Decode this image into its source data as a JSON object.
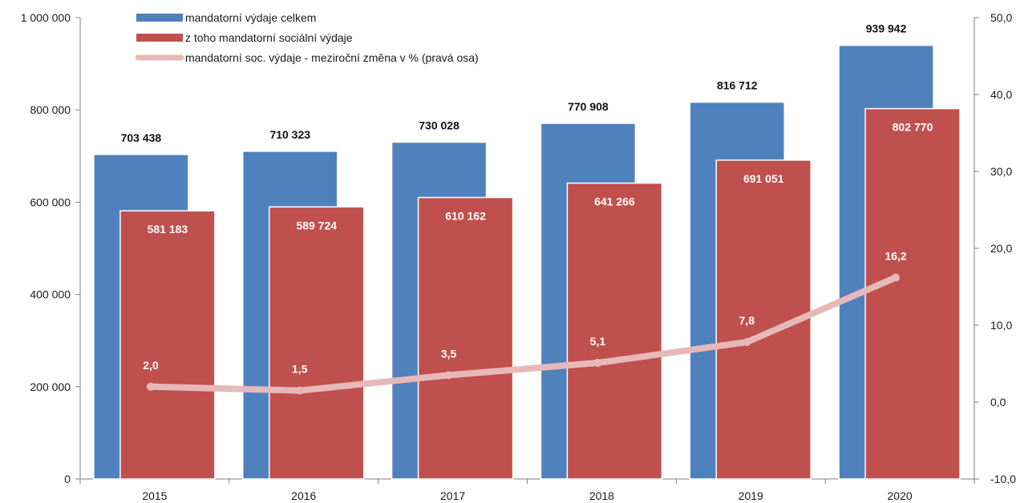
{
  "chart_data": {
    "type": "bar",
    "categories": [
      "2015",
      "2016",
      "2017",
      "2018",
      "2019",
      "2020"
    ],
    "series": [
      {
        "name": "mandatorní výdaje celkem",
        "type": "bar",
        "axis": "left",
        "color": "#4f81bd",
        "values": [
          703438,
          710323,
          730028,
          770908,
          816712,
          939942
        ],
        "labels": [
          "703 438",
          "710 323",
          "730 028",
          "770 908",
          "816 712",
          "939 942"
        ]
      },
      {
        "name": "z toho mandatorní sociální výdaje",
        "type": "bar",
        "axis": "left",
        "color": "#c0504d",
        "values": [
          581183,
          589724,
          610162,
          641266,
          691051,
          802770
        ],
        "labels": [
          "581 183",
          "589 724",
          "610 162",
          "641 266",
          "691 051",
          "802 770"
        ]
      },
      {
        "name": "mandatorní soc. výdaje - meziroční změna v % (pravá osa)",
        "type": "line",
        "axis": "right",
        "color": "#e6b9b8",
        "values": [
          2.0,
          1.5,
          3.5,
          5.1,
          7.8,
          16.2
        ],
        "labels": [
          "2,0",
          "1,5",
          "3,5",
          "5,1",
          "7,8",
          "16,2"
        ]
      }
    ],
    "y_left": {
      "ylim": [
        0,
        1000000
      ],
      "ticks": [
        0,
        200000,
        400000,
        600000,
        800000,
        1000000
      ],
      "tick_labels": [
        "0",
        "200 000",
        "400 000",
        "600 000",
        "800 000",
        "1 000 000"
      ]
    },
    "y_right": {
      "ylim": [
        -10,
        50
      ],
      "ticks": [
        -10,
        0,
        10,
        20,
        30,
        40,
        50
      ],
      "tick_labels": [
        "-10,0",
        "0,0",
        "10,0",
        "20,0",
        "30,0",
        "40,0",
        "50,0"
      ]
    },
    "legend_position": "top-left",
    "grid": false
  }
}
